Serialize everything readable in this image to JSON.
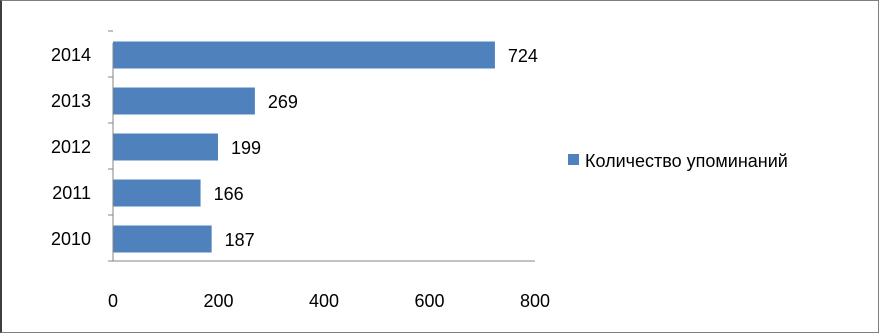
{
  "chart_data": {
    "type": "bar",
    "orientation": "horizontal",
    "categories": [
      "2010",
      "2011",
      "2012",
      "2013",
      "2014"
    ],
    "series": [
      {
        "name": "Количество упоминаний",
        "values": [
          187,
          166,
          199,
          269,
          724
        ],
        "color": "#4f81bd"
      }
    ],
    "xlim": [
      0,
      800
    ],
    "x_ticks": [
      0,
      200,
      400,
      600,
      800
    ],
    "title": "",
    "xlabel": "",
    "ylabel": "",
    "grid": false,
    "legend_position": "right",
    "data_labels": true
  }
}
